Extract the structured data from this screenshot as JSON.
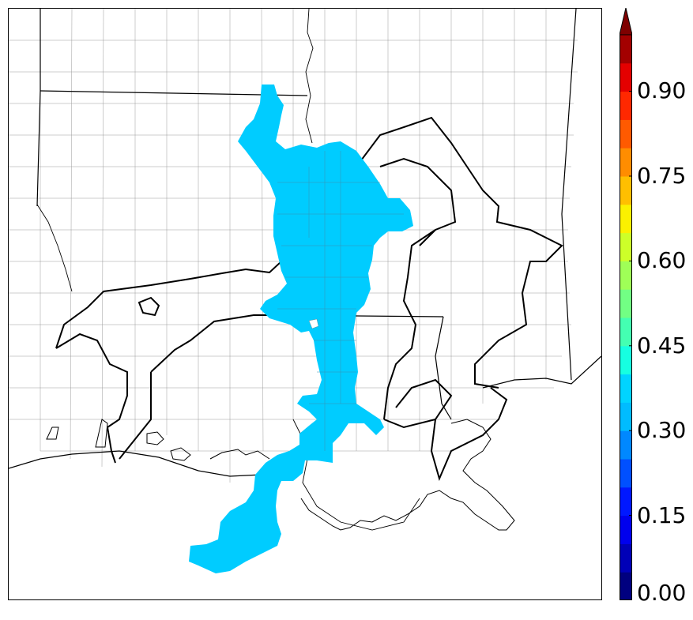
{
  "colorbar": {
    "ticks": [
      "0.00",
      "0.15",
      "0.30",
      "0.45",
      "0.60",
      "0.75",
      "0.90"
    ],
    "tick_values": [
      0.0,
      0.15,
      0.3,
      0.45,
      0.6,
      0.75,
      0.9
    ],
    "range": [
      0.0,
      1.0
    ],
    "extend": "max",
    "levels": 20,
    "colors": [
      "#00007f",
      "#0000b7",
      "#0000ee",
      "#0018ff",
      "#0050ff",
      "#0088ff",
      "#00bcff",
      "#00d4ff",
      "#16ffe1",
      "#44ffb2",
      "#72ff84",
      "#9fff57",
      "#cdff29",
      "#fbf100",
      "#ffbf00",
      "#ff8d00",
      "#ff5a00",
      "#ff2800",
      "#e40000",
      "#a30000"
    ],
    "extend_color": "#7f0000"
  },
  "map": {
    "region": "Louisiana, southern Arkansas, western Mississippi",
    "shaded_value": 0.3,
    "shaded_color": "#00ccff",
    "basemap": [
      "county-lines",
      "state-lines",
      "coastline",
      "basin-outline"
    ]
  }
}
